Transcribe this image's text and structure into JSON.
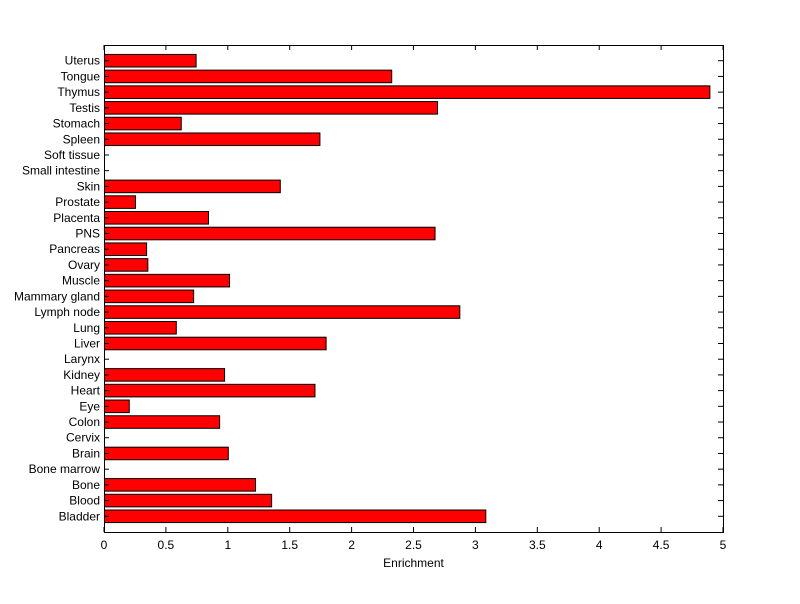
{
  "chart_data": {
    "type": "bar",
    "orientation": "horizontal",
    "title": "",
    "xlabel": "Enrichment",
    "ylabel": "",
    "xlim": [
      0,
      5
    ],
    "x_ticks": [
      "0",
      "0.5",
      "1",
      "1.5",
      "2",
      "2.5",
      "3",
      "3.5",
      "4",
      "4.5",
      "5"
    ],
    "x_tick_values": [
      0,
      0.5,
      1,
      1.5,
      2,
      2.5,
      3,
      3.5,
      4,
      4.5,
      5
    ],
    "grid": false,
    "legend": "none",
    "bar_color": "#ff0000",
    "edge_color": "#000000",
    "categories": [
      "Uterus",
      "Tongue",
      "Thymus",
      "Testis",
      "Stomach",
      "Spleen",
      "Soft tissue",
      "Small intestine",
      "Skin",
      "Prostate",
      "Placenta",
      "PNS",
      "Pancreas",
      "Ovary",
      "Muscle",
      "Mammary gland",
      "Lymph node",
      "Lung",
      "Liver",
      "Larynx",
      "Kidney",
      "Heart",
      "Eye",
      "Colon",
      "Cervix",
      "Brain",
      "Bone marrow",
      "Bone",
      "Blood",
      "Bladder"
    ],
    "values": [
      0.74,
      2.32,
      4.89,
      2.69,
      0.62,
      1.74,
      0,
      0,
      1.42,
      0.25,
      0.84,
      2.67,
      0.34,
      0.35,
      1.01,
      0.72,
      2.87,
      0.58,
      1.79,
      0,
      0.97,
      1.7,
      0.2,
      0.93,
      0,
      1.0,
      0,
      1.22,
      1.35,
      3.08
    ]
  }
}
